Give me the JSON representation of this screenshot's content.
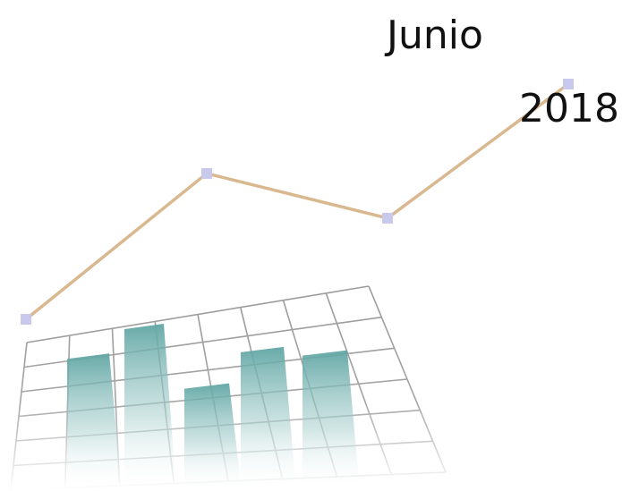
{
  "caption": {
    "month": "Junio",
    "year": "2018"
  },
  "trend_line": {
    "points": [
      {
        "x": 1,
        "y": 0.0
      },
      {
        "x": 2,
        "y": 0.62
      },
      {
        "x": 3,
        "y": 0.43
      },
      {
        "x": 4,
        "y": 1.0
      }
    ]
  },
  "bars": {
    "values": [
      0.82,
      1.0,
      0.64,
      0.86,
      0.84
    ]
  },
  "colors": {
    "line": "#d9b88f",
    "marker": "#c9c9ee",
    "bar": "#5fa5a3",
    "grid": "#9a9a9a",
    "text": "#111111"
  }
}
